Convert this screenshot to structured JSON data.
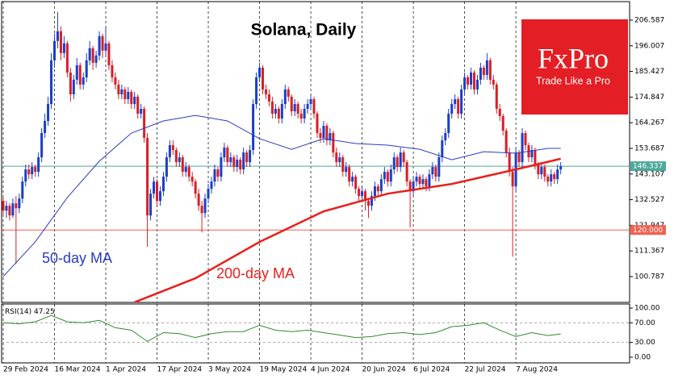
{
  "chart_data": [
    {
      "type": "candlestick",
      "title": "Solana, Daily",
      "xlim": [
        -0.5,
        195.5
      ],
      "ylim": [
        90.14,
        214.24
      ],
      "xticks": [
        {
          "value": 0,
          "label": "29 Feb 2024"
        },
        {
          "value": 16,
          "label": "16 Mar 2024"
        },
        {
          "value": 32,
          "label": "1 Apr 2024"
        },
        {
          "value": 48,
          "label": "17 Apr 2024"
        },
        {
          "value": 64,
          "label": "3 May 2024"
        },
        {
          "value": 80,
          "label": "19 May 2024"
        },
        {
          "value": 96,
          "label": "4 Jun 2024"
        },
        {
          "value": 112,
          "label": "20 Jun 2024"
        },
        {
          "value": 128,
          "label": "6 Jul 2024"
        },
        {
          "value": 144,
          "label": "22 Jul 2024"
        },
        {
          "value": 160,
          "label": "7 Aug 2024"
        }
      ],
      "yticks": [
        206.587,
        196.007,
        185.427,
        174.847,
        164.267,
        153.687,
        143.107,
        132.527,
        121.947,
        111.367,
        100.787
      ],
      "up_color": "#1c3fc8",
      "down_color": "#d81f26",
      "ohlc": [
        [
          132,
          134,
          126,
          128
        ],
        [
          128,
          132,
          125,
          130
        ],
        [
          130,
          131,
          124,
          126
        ],
        [
          126,
          133,
          125,
          131
        ],
        [
          131,
          134,
          106,
          129
        ],
        [
          129,
          135,
          127,
          133
        ],
        [
          133,
          142,
          131,
          140
        ],
        [
          140,
          147,
          138,
          145
        ],
        [
          145,
          147,
          141,
          143
        ],
        [
          143,
          148,
          141,
          146
        ],
        [
          146,
          147,
          142,
          144
        ],
        [
          144,
          152,
          142,
          150
        ],
        [
          150,
          162,
          148,
          160
        ],
        [
          160,
          168,
          158,
          165
        ],
        [
          165,
          175,
          163,
          172
        ],
        [
          172,
          193,
          170,
          190
        ],
        [
          190,
          201,
          187,
          198
        ],
        [
          198,
          210,
          195,
          202
        ],
        [
          202,
          204,
          190,
          193
        ],
        [
          193,
          200,
          191,
          197
        ],
        [
          197,
          198,
          183,
          185
        ],
        [
          185,
          187,
          173,
          176
        ],
        [
          176,
          184,
          174,
          182
        ],
        [
          182,
          191,
          180,
          188
        ],
        [
          188,
          189,
          178,
          180
        ],
        [
          180,
          185,
          178,
          183
        ],
        [
          183,
          193,
          181,
          190
        ],
        [
          190,
          198,
          188,
          195
        ],
        [
          195,
          196,
          186,
          189
        ],
        [
          189,
          194,
          187,
          192
        ],
        [
          192,
          202,
          190,
          200
        ],
        [
          200,
          201,
          191,
          194
        ],
        [
          194,
          204,
          192,
          197
        ],
        [
          197,
          198,
          186,
          188
        ],
        [
          188,
          190,
          181,
          183
        ],
        [
          183,
          185,
          178,
          180
        ],
        [
          180,
          182,
          174,
          176
        ],
        [
          176,
          180,
          174,
          178
        ],
        [
          178,
          179,
          172,
          174
        ],
        [
          174,
          179,
          172,
          177
        ],
        [
          177,
          178,
          170,
          172
        ],
        [
          172,
          177,
          170,
          175
        ],
        [
          175,
          176,
          166,
          168
        ],
        [
          168,
          172,
          166,
          170
        ],
        [
          170,
          171,
          156,
          158
        ],
        [
          158,
          160,
          113,
          126
        ],
        [
          126,
          137,
          124,
          135
        ],
        [
          135,
          142,
          133,
          140
        ],
        [
          140,
          141,
          130,
          132
        ],
        [
          132,
          138,
          130,
          136
        ],
        [
          136,
          144,
          134,
          142
        ],
        [
          142,
          152,
          140,
          150
        ],
        [
          150,
          157,
          148,
          155
        ],
        [
          155,
          157,
          151,
          153
        ],
        [
          153,
          154,
          146,
          148
        ],
        [
          148,
          152,
          146,
          150
        ],
        [
          150,
          151,
          142,
          144
        ],
        [
          144,
          148,
          142,
          146
        ],
        [
          146,
          147,
          140,
          142
        ],
        [
          142,
          144,
          138,
          140
        ],
        [
          140,
          141,
          133,
          135
        ],
        [
          135,
          137,
          128,
          130
        ],
        [
          130,
          132,
          119,
          127
        ],
        [
          127,
          135,
          125,
          133
        ],
        [
          133,
          139,
          131,
          137
        ],
        [
          137,
          142,
          135,
          140
        ],
        [
          140,
          147,
          138,
          145
        ],
        [
          145,
          146,
          140,
          142
        ],
        [
          142,
          152,
          140,
          150
        ],
        [
          150,
          156,
          148,
          154
        ],
        [
          154,
          155,
          146,
          148
        ],
        [
          148,
          152,
          146,
          150
        ],
        [
          150,
          151,
          144,
          146
        ],
        [
          146,
          151,
          144,
          149
        ],
        [
          149,
          150,
          143,
          145
        ],
        [
          145,
          154,
          143,
          152
        ],
        [
          152,
          153,
          146,
          148
        ],
        [
          148,
          155,
          146,
          153
        ],
        [
          153,
          174,
          151,
          172
        ],
        [
          172,
          185,
          170,
          183
        ],
        [
          183,
          189,
          181,
          187
        ],
        [
          187,
          188,
          176,
          178
        ],
        [
          178,
          180,
          174,
          176
        ],
        [
          176,
          178,
          171,
          173
        ],
        [
          173,
          175,
          166,
          168
        ],
        [
          168,
          172,
          166,
          170
        ],
        [
          170,
          171,
          164,
          166
        ],
        [
          166,
          174,
          164,
          172
        ],
        [
          172,
          180,
          170,
          178
        ],
        [
          178,
          179,
          173,
          175
        ],
        [
          175,
          176,
          167,
          169
        ],
        [
          169,
          174,
          167,
          172
        ],
        [
          172,
          173,
          166,
          168
        ],
        [
          168,
          170,
          164,
          166
        ],
        [
          166,
          172,
          164,
          170
        ],
        [
          170,
          174,
          168,
          172
        ],
        [
          172,
          176,
          170,
          174
        ],
        [
          174,
          175,
          166,
          168
        ],
        [
          168,
          169,
          158,
          160
        ],
        [
          160,
          162,
          156,
          158
        ],
        [
          158,
          165,
          156,
          163
        ],
        [
          163,
          164,
          155,
          157
        ],
        [
          157,
          162,
          155,
          160
        ],
        [
          160,
          161,
          150,
          152
        ],
        [
          152,
          154,
          146,
          148
        ],
        [
          148,
          152,
          146,
          150
        ],
        [
          150,
          151,
          142,
          144
        ],
        [
          144,
          148,
          142,
          146
        ],
        [
          146,
          147,
          138,
          140
        ],
        [
          140,
          144,
          138,
          142
        ],
        [
          142,
          143,
          135,
          137
        ],
        [
          137,
          138,
          132,
          134
        ],
        [
          134,
          138,
          132,
          136
        ],
        [
          136,
          137,
          128,
          132
        ],
        [
          132,
          133,
          125,
          130
        ],
        [
          130,
          136,
          128,
          134
        ],
        [
          134,
          140,
          132,
          138
        ],
        [
          138,
          139,
          134,
          136
        ],
        [
          136,
          143,
          134,
          141
        ],
        [
          141,
          146,
          139,
          144
        ],
        [
          144,
          145,
          138,
          140
        ],
        [
          140,
          147,
          138,
          145
        ],
        [
          145,
          152,
          143,
          150
        ],
        [
          150,
          151,
          144,
          146
        ],
        [
          146,
          154,
          144,
          152
        ],
        [
          152,
          153,
          146,
          148
        ],
        [
          148,
          149,
          138,
          140
        ],
        [
          140,
          141,
          121,
          136
        ],
        [
          136,
          142,
          134,
          140
        ],
        [
          140,
          144,
          138,
          142
        ],
        [
          142,
          143,
          137,
          139
        ],
        [
          139,
          143,
          137,
          141
        ],
        [
          141,
          142,
          136,
          138
        ],
        [
          138,
          145,
          136,
          143
        ],
        [
          143,
          148,
          141,
          146
        ],
        [
          146,
          147,
          140,
          142
        ],
        [
          142,
          152,
          140,
          150
        ],
        [
          150,
          159,
          148,
          157
        ],
        [
          157,
          162,
          155,
          160
        ],
        [
          160,
          170,
          158,
          168
        ],
        [
          168,
          174,
          166,
          172
        ],
        [
          172,
          176,
          170,
          174
        ],
        [
          174,
          175,
          166,
          168
        ],
        [
          168,
          180,
          166,
          178
        ],
        [
          178,
          185,
          176,
          183
        ],
        [
          183,
          184,
          178,
          180
        ],
        [
          180,
          187,
          178,
          185
        ],
        [
          185,
          186,
          176,
          178
        ],
        [
          178,
          184,
          176,
          182
        ],
        [
          182,
          189,
          180,
          187
        ],
        [
          187,
          188,
          182,
          184
        ],
        [
          184,
          193,
          182,
          190
        ],
        [
          190,
          191,
          180,
          182
        ],
        [
          182,
          184,
          178,
          180
        ],
        [
          180,
          181,
          168,
          170
        ],
        [
          170,
          172,
          165,
          167
        ],
        [
          167,
          168,
          159,
          161
        ],
        [
          161,
          162,
          150,
          152
        ],
        [
          152,
          154,
          142,
          144
        ],
        [
          144,
          146,
          109,
          138
        ],
        [
          138,
          154,
          136,
          152
        ],
        [
          152,
          153,
          146,
          148
        ],
        [
          148,
          162,
          146,
          160
        ],
        [
          160,
          161,
          153,
          155
        ],
        [
          155,
          156,
          148,
          150
        ],
        [
          150,
          155,
          148,
          153
        ],
        [
          153,
          154,
          145,
          147
        ],
        [
          147,
          148,
          141,
          143
        ],
        [
          143,
          148,
          141,
          146
        ],
        [
          146,
          147,
          140,
          142
        ],
        [
          142,
          143,
          138,
          140
        ],
        [
          140,
          145,
          138,
          143
        ],
        [
          143,
          144,
          139,
          141
        ],
        [
          141,
          147,
          139,
          145
        ],
        [
          145,
          148,
          143,
          146.337
        ]
      ],
      "series": [
        {
          "name": "50-day MA",
          "color": "#2b3bc0",
          "x": [
            0,
            10,
            20,
            30,
            40,
            50,
            60,
            70,
            80,
            90,
            100,
            110,
            120,
            130,
            140,
            150,
            160,
            170,
            174
          ],
          "values": [
            100.8,
            115.1,
            133.4,
            148.4,
            160,
            165,
            167.3,
            165,
            157.7,
            153.3,
            157.7,
            155.7,
            155,
            153.3,
            149,
            152.3,
            151.7,
            153.7,
            153.7
          ]
        },
        {
          "name": "200-day MA",
          "color": "#e8201c",
          "x": [
            41,
            60,
            80,
            100,
            120,
            140,
            160,
            174
          ],
          "values": [
            90.2,
            100.1,
            115.1,
            127.7,
            135,
            139,
            145,
            149.4
          ]
        }
      ],
      "hlines": [
        {
          "value": 146.337,
          "color": "#4fa89b"
        },
        {
          "value": 120,
          "label": "120.000",
          "color": "#f0604f"
        }
      ],
      "logo": {
        "name": "FxPro",
        "tagline": "Trade Like a Pro"
      }
    },
    {
      "type": "line",
      "name": "RSI(14)",
      "color": "#2e8b2e",
      "xlim": [
        -0.5,
        195.5
      ],
      "ylim": [
        -11.5,
        108.2
      ],
      "yticks": [
        {
          "value": 100,
          "label": "100.00"
        },
        {
          "value": 70,
          "label": "70.00"
        },
        {
          "value": 30,
          "label": "30.00"
        },
        {
          "value": 0,
          "label": "0.00"
        }
      ],
      "levels": [
        70,
        30
      ],
      "x": [
        0,
        5,
        10,
        15,
        20,
        25,
        30,
        35,
        40,
        45,
        50,
        55,
        60,
        65,
        70,
        75,
        80,
        85,
        90,
        95,
        100,
        105,
        110,
        115,
        120,
        125,
        130,
        135,
        140,
        145,
        150,
        155,
        160,
        165,
        170,
        174
      ],
      "values": [
        70,
        68,
        72,
        85,
        72,
        70,
        75,
        60,
        55,
        32,
        50,
        48,
        40,
        48,
        52,
        52,
        65,
        55,
        52,
        55,
        50,
        45,
        40,
        42,
        48,
        50,
        46,
        50,
        62,
        65,
        70,
        55,
        42,
        50,
        44,
        47.25
      ]
    }
  ]
}
